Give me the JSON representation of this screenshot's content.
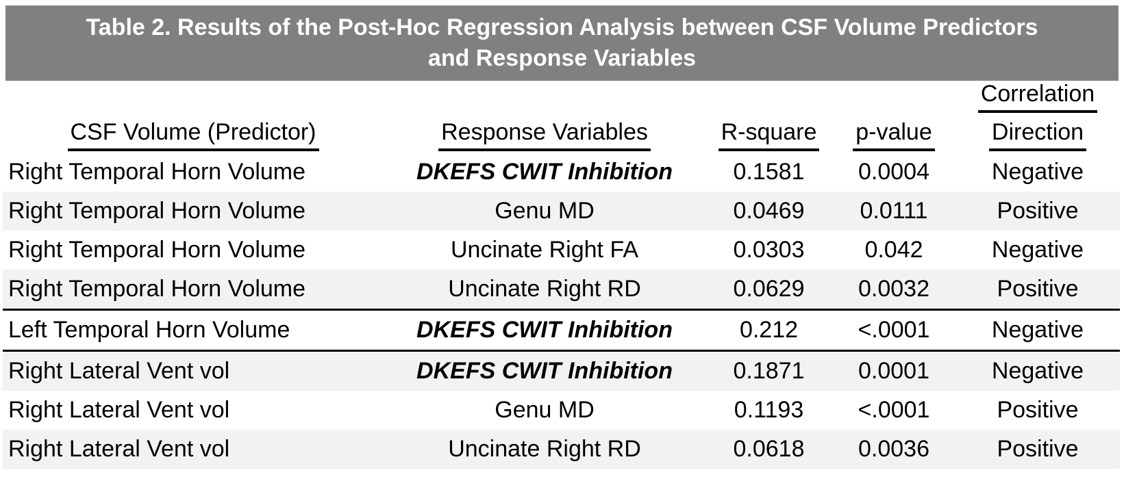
{
  "title": {
    "line1": "Table 2. Results of the Post-Hoc Regression Analysis between CSF Volume Predictors",
    "line2": "and Response Variables"
  },
  "columns": [
    {
      "label": "CSF Volume (Predictor)"
    },
    {
      "label": "Response Variables"
    },
    {
      "label": "R-square"
    },
    {
      "label": "p-value"
    },
    {
      "line1": "Correlation",
      "line2": "Direction"
    }
  ],
  "rows": [
    {
      "predictor": "Right Temporal Horn Volume",
      "response": "DKEFS CWIT Inhibition",
      "r_square": "0.1581",
      "p_value": "0.0004",
      "direction": "Negative"
    },
    {
      "predictor": "Right Temporal Horn Volume",
      "response": "Genu MD",
      "r_square": "0.0469",
      "p_value": "0.0111",
      "direction": "Positive"
    },
    {
      "predictor": "Right Temporal Horn Volume",
      "response": "Uncinate Right FA",
      "r_square": "0.0303",
      "p_value": "0.042",
      "direction": "Negative"
    },
    {
      "predictor": "Right Temporal Horn Volume",
      "response": "Uncinate Right RD",
      "r_square": "0.0629",
      "p_value": "0.0032",
      "direction": "Positive"
    },
    {
      "predictor": "Left Temporal Horn Volume",
      "response": "DKEFS CWIT Inhibition",
      "r_square": "0.212",
      "p_value": "<.0001",
      "direction": "Negative"
    },
    {
      "predictor": "Right Lateral Vent vol",
      "response": "DKEFS CWIT Inhibition",
      "r_square": "0.1871",
      "p_value": "0.0001",
      "direction": "Negative"
    },
    {
      "predictor": "Right Lateral Vent vol",
      "response": "Genu MD",
      "r_square": "0.1193",
      "p_value": "<.0001",
      "direction": "Positive"
    },
    {
      "predictor": "Right Lateral Vent vol",
      "response": "Uncinate Right RD",
      "r_square": "0.0618",
      "p_value": "0.0036",
      "direction": "Positive"
    }
  ],
  "colors": {
    "title_bar_bg": "#808080",
    "title_text": "#ffffff",
    "stripe_bg": "#f2f2f2",
    "text": "#000000",
    "separator": "#000000"
  },
  "chart_data": {
    "type": "table",
    "title": "Table 2. Results of the Post-Hoc Regression Analysis between CSF Volume Predictors and Response Variables",
    "columns": [
      "CSF Volume (Predictor)",
      "Response Variables",
      "R-square",
      "p-value",
      "Correlation Direction"
    ],
    "rows": [
      [
        "Right Temporal Horn Volume",
        "DKEFS CWIT Inhibition",
        0.1581,
        "0.0004",
        "Negative"
      ],
      [
        "Right Temporal Horn Volume",
        "Genu MD",
        0.0469,
        "0.0111",
        "Positive"
      ],
      [
        "Right Temporal Horn Volume",
        "Uncinate Right FA",
        0.0303,
        "0.042",
        "Negative"
      ],
      [
        "Right Temporal Horn Volume",
        "Uncinate Right RD",
        0.0629,
        "0.0032",
        "Positive"
      ],
      [
        "Left Temporal Horn Volume",
        "DKEFS CWIT Inhibition",
        0.212,
        "<.0001",
        "Negative"
      ],
      [
        "Right Lateral Vent vol",
        "DKEFS CWIT Inhibition",
        0.1871,
        "0.0001",
        "Negative"
      ],
      [
        "Right Lateral Vent vol",
        "Genu MD",
        0.1193,
        "<.0001",
        "Positive"
      ],
      [
        "Right Lateral Vent vol",
        "Uncinate Right RD",
        0.0618,
        "0.0036",
        "Positive"
      ]
    ]
  }
}
